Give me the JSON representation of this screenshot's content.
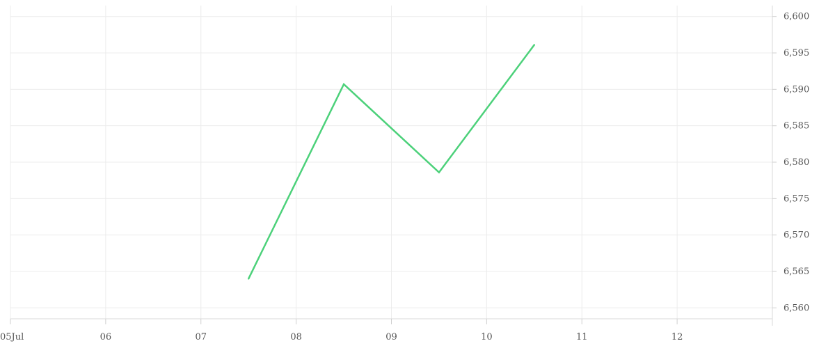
{
  "chart_data": {
    "type": "line",
    "title": "",
    "xlabel": "",
    "ylabel": "",
    "x_ticks": [
      {
        "day": 5,
        "label": "05Jul"
      },
      {
        "day": 6,
        "label": "06"
      },
      {
        "day": 7,
        "label": "07"
      },
      {
        "day": 8,
        "label": "08"
      },
      {
        "day": 9,
        "label": "09"
      },
      {
        "day": 10,
        "label": "10"
      },
      {
        "day": 11,
        "label": "11"
      },
      {
        "day": 12,
        "label": "12"
      }
    ],
    "xlim": [
      "2024-07-05",
      "2024-07-13"
    ],
    "ylim": [
      6558.5,
      6601.5
    ],
    "y_ticks": [
      6560,
      6565,
      6570,
      6575,
      6580,
      6585,
      6590,
      6595,
      6600
    ],
    "y_tick_labels": [
      "6,560",
      "6,565",
      "6,570",
      "6,575",
      "6,580",
      "6,585",
      "6,590",
      "6,595",
      "6,600"
    ],
    "grid": true,
    "y_axis_side": "right",
    "series": [
      {
        "color": "#4cd17a",
        "points": [
          {
            "x": "2024-07-07T12:00",
            "y": 6564.0
          },
          {
            "x": "2024-07-08T12:00",
            "y": 6590.7
          },
          {
            "x": "2024-07-09T12:00",
            "y": 6578.6
          },
          {
            "x": "2024-07-10T12:00",
            "y": 6596.1
          }
        ]
      }
    ]
  }
}
